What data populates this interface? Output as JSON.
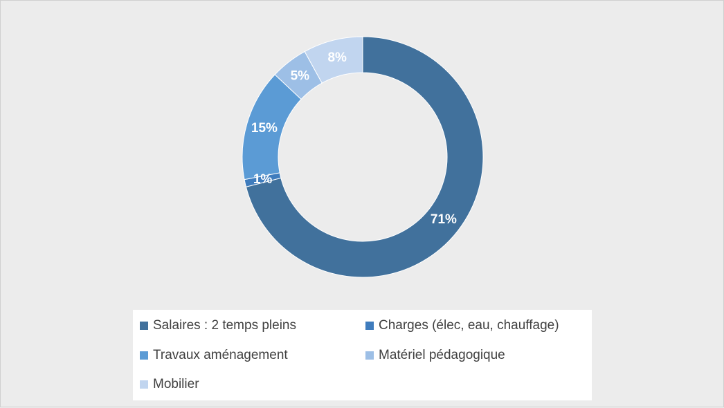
{
  "chart_data": {
    "type": "pie",
    "variant": "donut",
    "title": "",
    "categories": [
      "Salaires : 2 temps pleins",
      "Charges (élec, eau, chauffage)",
      "Travaux aménagement",
      "Matériel pédagogique",
      "Mobilier"
    ],
    "values": [
      71,
      1,
      15,
      5,
      8
    ],
    "data_labels": [
      "71%",
      "1%",
      "15%",
      "5%",
      "8%"
    ],
    "colors": [
      "#41719c",
      "#3f7cbd",
      "#5b9bd5",
      "#9dbfe6",
      "#c1d5ef"
    ],
    "legend_position": "bottom"
  },
  "legend": {
    "items": [
      {
        "label": "Salaires : 2 temps pleins",
        "color": "#41719c"
      },
      {
        "label": "Charges (élec, eau, chauffage)",
        "color": "#3f7cbd"
      },
      {
        "label": "Travaux aménagement",
        "color": "#5b9bd5"
      },
      {
        "label": "Matériel pédagogique",
        "color": "#9dbfe6"
      },
      {
        "label": "Mobilier",
        "color": "#c1d5ef"
      }
    ]
  }
}
